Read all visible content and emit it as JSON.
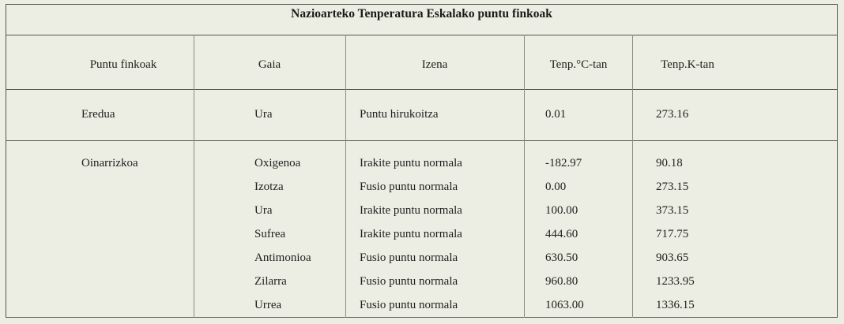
{
  "title": "Nazioarteko Tenperatura Eskalako puntu finkoak",
  "table": {
    "header": [
      "Puntu finkoak",
      "Gaia",
      "Izena",
      "Tenp.°C-tan",
      "Tenp.K-tan"
    ],
    "groups": [
      {
        "label": "Eredua",
        "rows": [
          [
            "Ura",
            "Puntu hirukoitza",
            "0.01",
            "273.16"
          ]
        ]
      },
      {
        "label": "Oinarrizkoa",
        "rows": [
          [
            "Oxigenoa",
            "Irakite puntu normala",
            "-182.97",
            "90.18"
          ],
          [
            "Izotza",
            "Fusio puntu normala",
            "0.00",
            "273.15"
          ],
          [
            "Ura",
            "Irakite puntu normala",
            "100.00",
            "373.15"
          ],
          [
            "Sufrea",
            "Irakite puntu normala",
            "444.60",
            "717.75"
          ],
          [
            "Antimonioa",
            "Fusio puntu normala",
            "630.50",
            "903.65"
          ],
          [
            "Zilarra",
            "Fusio puntu normala",
            "960.80",
            "1233.95"
          ],
          [
            "Urrea",
            "Fusio puntu normala",
            "1063.00",
            "1336.15"
          ]
        ]
      }
    ]
  }
}
